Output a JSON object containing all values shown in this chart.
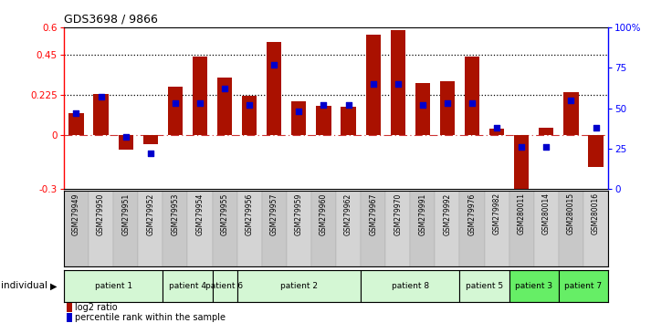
{
  "title": "GDS3698 / 9866",
  "samples": [
    "GSM279949",
    "GSM279950",
    "GSM279951",
    "GSM279952",
    "GSM279953",
    "GSM279954",
    "GSM279955",
    "GSM279956",
    "GSM279957",
    "GSM279959",
    "GSM279960",
    "GSM279962",
    "GSM279967",
    "GSM279970",
    "GSM279991",
    "GSM279992",
    "GSM279976",
    "GSM279982",
    "GSM280011",
    "GSM280014",
    "GSM280015",
    "GSM280016"
  ],
  "log2_ratio": [
    0.12,
    0.23,
    -0.08,
    -0.05,
    0.27,
    0.44,
    0.32,
    0.22,
    0.52,
    0.19,
    0.165,
    0.16,
    0.56,
    0.585,
    0.29,
    0.3,
    0.44,
    0.035,
    -0.32,
    0.04,
    0.24,
    -0.175
  ],
  "percentile": [
    47,
    57,
    32,
    22,
    53,
    53,
    62,
    52,
    77,
    48,
    52,
    52,
    65,
    65,
    52,
    53,
    53,
    38,
    26,
    26,
    55,
    38
  ],
  "patients": [
    {
      "label": "patient 1",
      "start": 0,
      "end": 4,
      "color": "#d4f7d4"
    },
    {
      "label": "patient 4",
      "start": 4,
      "end": 6,
      "color": "#d4f7d4"
    },
    {
      "label": "patient 6",
      "start": 6,
      "end": 7,
      "color": "#d4f7d4"
    },
    {
      "label": "patient 2",
      "start": 7,
      "end": 12,
      "color": "#d4f7d4"
    },
    {
      "label": "patient 8",
      "start": 12,
      "end": 16,
      "color": "#d4f7d4"
    },
    {
      "label": "patient 5",
      "start": 16,
      "end": 18,
      "color": "#d4f7d4"
    },
    {
      "label": "patient 3",
      "start": 18,
      "end": 20,
      "color": "#66ee66"
    },
    {
      "label": "patient 7",
      "start": 20,
      "end": 22,
      "color": "#66ee66"
    }
  ],
  "ylim_left": [
    -0.3,
    0.6
  ],
  "ylim_right": [
    0,
    100
  ],
  "yticks_left": [
    -0.3,
    0,
    0.225,
    0.45,
    0.6
  ],
  "yticks_right": [
    0,
    25,
    50,
    75,
    100
  ],
  "hlines": [
    0.225,
    0.45
  ],
  "bar_color": "#aa1100",
  "dot_color": "#0000cc",
  "bar_width": 0.6,
  "dot_size": 22,
  "zero_line_color": "#cc3333",
  "bg_color": "#ffffff",
  "legend_bar": "log2 ratio",
  "legend_dot": "percentile rank within the sample"
}
